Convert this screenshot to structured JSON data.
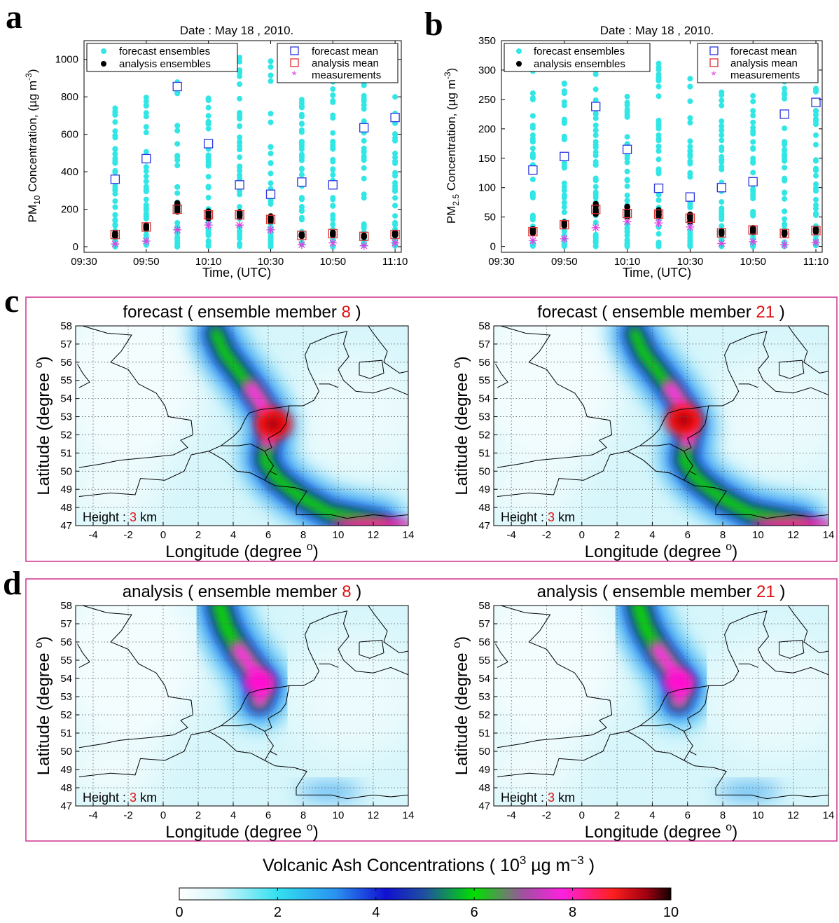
{
  "panels": {
    "a": {
      "letter": "a",
      "title": "Date : May 18 , 2010.",
      "ylabel": "PM10 Concentration, (µg m-3)",
      "ylabel_parts": {
        "pm": "PM",
        "sub": "10",
        "rest": " Concentration, (µg m",
        "sup": "-3",
        "close": ")"
      },
      "xlabel": "Time, (UTC)",
      "xticks": [
        "09:30",
        "09:50",
        "10:10",
        "10:30",
        "10:50",
        "11:10"
      ],
      "yticks": [
        "0",
        "200",
        "400",
        "600",
        "800",
        "1000"
      ]
    },
    "b": {
      "letter": "b",
      "title": "Date : May 18 , 2010.",
      "ylabel": "PM2.5 Concentration, (µg m-3)",
      "ylabel_parts": {
        "pm": "PM",
        "sub": "2.5",
        "rest": " Concentration, (µg m",
        "sup": "-3",
        "close": ")"
      },
      "xlabel": "Time, (UTC)",
      "xticks": [
        "09:30",
        "09:50",
        "10:10",
        "10:30",
        "10:50",
        "11:10"
      ],
      "yticks": [
        "0",
        "50",
        "100",
        "150",
        "200",
        "250",
        "300",
        "350"
      ]
    },
    "c": {
      "letter": "c",
      "maps": [
        {
          "title_pre": "forecast ( ensemble member ",
          "member": "8",
          "title_post": " )"
        },
        {
          "title_pre": "forecast ( ensemble member ",
          "member": "21",
          "title_post": " )"
        }
      ]
    },
    "d": {
      "letter": "d",
      "maps": [
        {
          "title_pre": "analysis ( ensemble member ",
          "member": "8",
          "title_post": " )"
        },
        {
          "title_pre": "analysis ( ensemble member ",
          "member": "21",
          "title_post": " )"
        }
      ]
    }
  },
  "map_axes": {
    "xlabel_pre": "Longitude (degree ",
    "xlabel_sup": "o",
    "xlabel_post": ")",
    "ylabel_pre": "Latitude (degree ",
    "ylabel_sup": "o",
    "ylabel_post": ")",
    "xticks": [
      "-4",
      "-2",
      "0",
      "2",
      "4",
      "6",
      "8",
      "10",
      "12",
      "14"
    ],
    "yticks": [
      "47",
      "48",
      "49",
      "50",
      "51",
      "52",
      "53",
      "54",
      "55",
      "56",
      "57",
      "58"
    ],
    "height_pre": "Height : ",
    "height_value": "3",
    "height_unit": " km"
  },
  "colorbar": {
    "title_pre": "Volcanic Ash Concentrations ( 10",
    "title_sup1": "3",
    "title_mid": " µg m",
    "title_sup2": "−3",
    "title_post": " )",
    "ticks": [
      "0",
      "2",
      "4",
      "6",
      "8",
      "10"
    ]
  },
  "legend": {
    "forecast_ensembles": "forecast ensembles",
    "analysis_ensembles": "analysis ensembles",
    "forecast_mean": "forecast mean",
    "analysis_mean": "analysis mean",
    "measurements": "measurements"
  },
  "colors": {
    "forecast_ensembles": "#33e6e6",
    "analysis_ensembles": "#000000",
    "forecast_mean": "#2a35e0",
    "analysis_mean": "#e03030",
    "measurements": "#e040e0",
    "frame": "#d03090",
    "member_highlight": "#e01010"
  },
  "chart_data": [
    {
      "type": "scatter",
      "panel": "a",
      "title": "Date : May 18 , 2010.",
      "xlabel": "Time, (UTC)",
      "ylabel": "PM10 Concentration, (µg m-3)",
      "x": [
        "09:40",
        "09:50",
        "10:00",
        "10:10",
        "10:20",
        "10:30",
        "10:40",
        "10:50",
        "11:00",
        "11:10"
      ],
      "xlim": [
        "09:30",
        "11:12"
      ],
      "ylim": [
        -30,
        1100
      ],
      "legend": "top, inside",
      "series": [
        {
          "name": "forecast mean",
          "values": [
            360,
            470,
            855,
            550,
            330,
            280,
            345,
            330,
            635,
            690
          ]
        },
        {
          "name": "analysis mean",
          "values": [
            65,
            105,
            200,
            170,
            170,
            145,
            60,
            70,
            55,
            65
          ]
        },
        {
          "name": "measurements",
          "values": [
            15,
            30,
            90,
            115,
            115,
            90,
            10,
            20,
            5,
            20
          ]
        },
        {
          "name": "analysis ensembles",
          "spread": [
            [
              55,
              75
            ],
            [
              95,
              115
            ],
            [
              170,
              235
            ],
            [
              150,
              195
            ],
            [
              150,
              190
            ],
            [
              125,
              165
            ],
            [
              55,
              70
            ],
            [
              60,
              80
            ],
            [
              50,
              60
            ],
            [
              60,
              75
            ]
          ]
        },
        {
          "name": "forecast ensembles",
          "spread": [
            [
              0,
              820
            ],
            [
              0,
              880
            ],
            [
              0,
              1000
            ],
            [
              0,
              800
            ],
            [
              0,
              1080
            ],
            [
              0,
              1000
            ],
            [
              0,
              800
            ],
            [
              0,
              960
            ],
            [
              0,
              1100
            ],
            [
              0,
              1000
            ]
          ]
        }
      ]
    },
    {
      "type": "scatter",
      "panel": "b",
      "title": "Date : May 18 , 2010.",
      "xlabel": "Time, (UTC)",
      "ylabel": "PM2.5 Concentration, (µg m-3)",
      "x": [
        "09:40",
        "09:50",
        "10:00",
        "10:10",
        "10:20",
        "10:30",
        "10:40",
        "10:50",
        "11:00",
        "11:10"
      ],
      "xlim": [
        "09:30",
        "11:12"
      ],
      "ylim": [
        -10,
        350
      ],
      "legend": "top, inside",
      "series": [
        {
          "name": "forecast mean",
          "values": [
            130,
            153,
            238,
            165,
            99,
            84,
            100,
            110,
            225,
            245
          ]
        },
        {
          "name": "analysis mean",
          "values": [
            25,
            37,
            63,
            56,
            55,
            48,
            23,
            28,
            22,
            27
          ]
        },
        {
          "name": "measurements",
          "values": [
            10,
            13,
            32,
            42,
            40,
            33,
            5,
            8,
            3,
            7
          ]
        },
        {
          "name": "analysis ensembles",
          "spread": [
            [
              22,
              30
            ],
            [
              34,
              42
            ],
            [
              55,
              75
            ],
            [
              50,
              68
            ],
            [
              50,
              62
            ],
            [
              42,
              55
            ],
            [
              20,
              27
            ],
            [
              24,
              32
            ],
            [
              20,
              25
            ],
            [
              24,
              30
            ]
          ]
        },
        {
          "name": "forecast ensembles",
          "spread": [
            [
              0,
              330
            ],
            [
              0,
              285
            ],
            [
              0,
              300
            ],
            [
              0,
              295
            ],
            [
              0,
              325
            ],
            [
              0,
              300
            ],
            [
              0,
              275
            ],
            [
              0,
              270
            ],
            [
              0,
              335
            ],
            [
              0,
              285
            ]
          ]
        }
      ]
    },
    {
      "type": "heatmap",
      "panel": "c",
      "name": "forecast, members 8 and 21",
      "xlim": [
        -5,
        14
      ],
      "ylim": [
        47,
        58
      ],
      "clim": [
        0,
        10
      ],
      "plume": [
        [
          3.0,
          57.6
        ],
        [
          3.5,
          56.5
        ],
        [
          4.3,
          55.5
        ],
        [
          5.0,
          54.6
        ],
        [
          5.7,
          53.6
        ],
        [
          6.2,
          52.6
        ],
        [
          6.0,
          51.6
        ],
        [
          5.8,
          50.6
        ],
        [
          6.5,
          49.6
        ],
        [
          7.8,
          48.6
        ],
        [
          9.5,
          47.7
        ],
        [
          12.5,
          47.1
        ]
      ],
      "peak_value_range": [
        8,
        10
      ]
    },
    {
      "type": "heatmap",
      "panel": "d",
      "name": "analysis, members 8 and 21",
      "xlim": [
        -5,
        14
      ],
      "ylim": [
        47,
        58
      ],
      "clim": [
        0,
        10
      ],
      "plume": [
        [
          3.2,
          58.0
        ],
        [
          3.6,
          56.8
        ],
        [
          4.3,
          55.6
        ],
        [
          5.2,
          54.4
        ],
        [
          5.8,
          53.6
        ],
        [
          5.5,
          52.8
        ]
      ],
      "peak_value_range": [
        7,
        8
      ]
    }
  ]
}
